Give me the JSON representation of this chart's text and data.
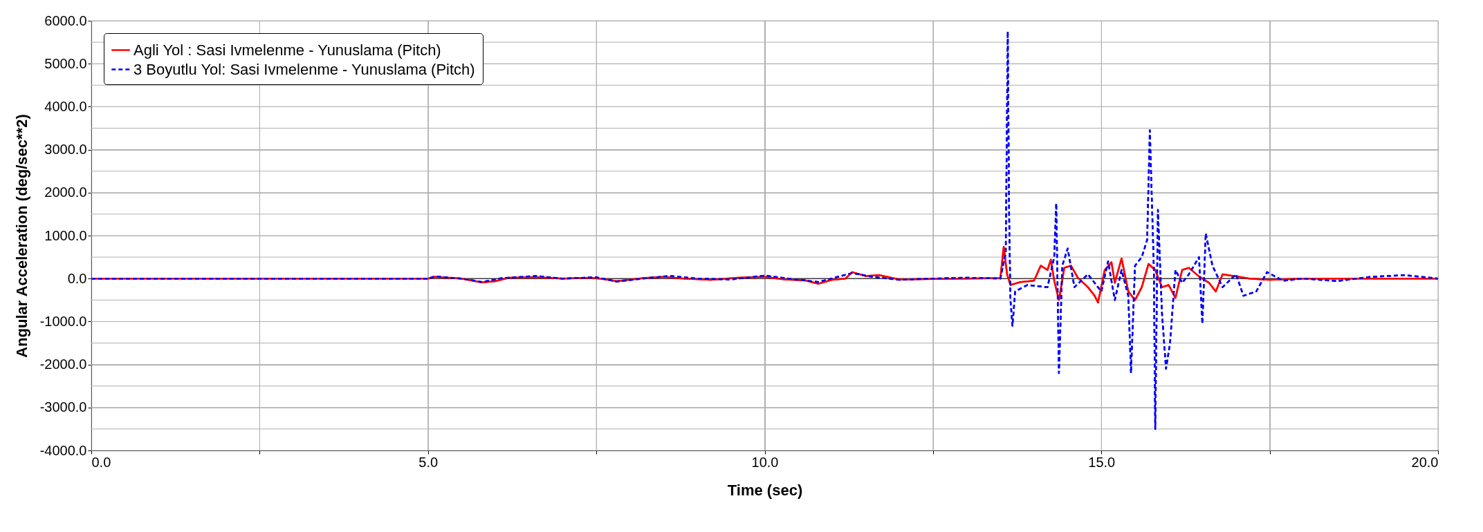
{
  "chart_data": {
    "type": "line",
    "xlabel": "Time (sec)",
    "ylabel": "Angular Acceleration (deg/sec**2)",
    "xlim": [
      0,
      20
    ],
    "ylim": [
      -4000,
      6000
    ],
    "xticks": [
      {
        "value": 0,
        "label": "0.0"
      },
      {
        "value": 2.5,
        "label": null
      },
      {
        "value": 5,
        "label": "5.0"
      },
      {
        "value": 7.5,
        "label": null
      },
      {
        "value": 10,
        "label": "10.0"
      },
      {
        "value": 12.5,
        "label": null
      },
      {
        "value": 15,
        "label": "15.0"
      },
      {
        "value": 17.5,
        "label": null
      },
      {
        "value": 20,
        "label": "20.0"
      }
    ],
    "yticks": [
      {
        "value": -4000,
        "label": "-4000.0"
      },
      {
        "value": -3500,
        "label": null
      },
      {
        "value": -3000,
        "label": "-3000.0"
      },
      {
        "value": -2500,
        "label": null
      },
      {
        "value": -2000,
        "label": "-2000.0"
      },
      {
        "value": -1500,
        "label": null
      },
      {
        "value": -1000,
        "label": "-1000.0"
      },
      {
        "value": -500,
        "label": null
      },
      {
        "value": 0,
        "label": "0.0"
      },
      {
        "value": 500,
        "label": null
      },
      {
        "value": 1000,
        "label": "1000.0"
      },
      {
        "value": 1500,
        "label": null
      },
      {
        "value": 2000,
        "label": "2000.0"
      },
      {
        "value": 2500,
        "label": null
      },
      {
        "value": 3000,
        "label": "3000.0"
      },
      {
        "value": 3500,
        "label": null
      },
      {
        "value": 4000,
        "label": "4000.0"
      },
      {
        "value": 4500,
        "label": null
      },
      {
        "value": 5000,
        "label": "5000.0"
      },
      {
        "value": 5500,
        "label": null
      },
      {
        "value": 6000,
        "label": "6000.0"
      }
    ],
    "grid": true,
    "legend": "top left",
    "series": [
      {
        "name": "Agli Yol : Sasi Ivmelenme - Yunuslama (Pitch)",
        "color": "#ff0000",
        "line_style": "solid",
        "x": [
          0,
          5.0,
          5.1,
          5.5,
          5.8,
          6.0,
          6.2,
          6.6,
          7.0,
          7.4,
          7.6,
          7.8,
          8.2,
          8.5,
          8.8,
          9.2,
          9.6,
          10.0,
          10.3,
          10.6,
          10.8,
          11.0,
          11.2,
          11.3,
          11.5,
          11.7,
          12.0,
          12.5,
          13.0,
          13.5,
          13.55,
          13.6,
          13.65,
          13.8,
          14.0,
          14.1,
          14.2,
          14.25,
          14.3,
          14.37,
          14.45,
          14.55,
          14.65,
          14.8,
          14.9,
          14.95,
          15.05,
          15.15,
          15.2,
          15.3,
          15.4,
          15.5,
          15.6,
          15.7,
          15.8,
          15.9,
          16.0,
          16.1,
          16.2,
          16.3,
          16.45,
          16.6,
          16.7,
          16.8,
          17.0,
          17.2,
          17.5,
          18.0,
          20.0
        ],
        "values": [
          0,
          0,
          40,
          0,
          -90,
          -60,
          20,
          30,
          0,
          20,
          -10,
          -60,
          10,
          40,
          0,
          -30,
          20,
          40,
          -20,
          -40,
          -120,
          -30,
          0,
          150,
          60,
          80,
          -20,
          -10,
          0,
          10,
          740,
          100,
          -150,
          -80,
          -50,
          300,
          200,
          440,
          -50,
          -500,
          250,
          300,
          20,
          -200,
          -400,
          -560,
          200,
          380,
          -100,
          470,
          -300,
          -500,
          -200,
          340,
          200,
          -200,
          -150,
          -450,
          200,
          250,
          50,
          -100,
          -300,
          100,
          50,
          0,
          -30,
          0,
          0
        ]
      },
      {
        "name": "3 Boyutlu Yol: Sasi Ivmelenme - Yunuslama (Pitch)",
        "color": "#0000ff",
        "line_style": "dashed",
        "x": [
          0,
          5.0,
          5.1,
          5.5,
          5.8,
          6.1,
          6.6,
          7.0,
          7.5,
          7.8,
          8.3,
          8.6,
          9.0,
          9.5,
          10.0,
          10.4,
          10.8,
          11.3,
          11.6,
          12.0,
          12.5,
          13.0,
          13.5,
          13.58,
          13.61,
          13.63,
          13.65,
          13.68,
          13.72,
          13.9,
          14.2,
          14.3,
          14.33,
          14.37,
          14.42,
          14.5,
          14.6,
          14.8,
          15.0,
          15.1,
          15.2,
          15.3,
          15.4,
          15.44,
          15.5,
          15.6,
          15.68,
          15.72,
          15.78,
          15.8,
          15.84,
          15.9,
          15.96,
          16.02,
          16.1,
          16.2,
          16.3,
          16.45,
          16.5,
          16.55,
          16.65,
          16.8,
          17.0,
          17.11,
          17.3,
          17.46,
          17.7,
          18.0,
          18.5,
          19.0,
          19.5,
          20.0
        ],
        "values": [
          0,
          0,
          50,
          0,
          -80,
          10,
          60,
          0,
          30,
          -70,
          20,
          60,
          0,
          -20,
          70,
          -10,
          -80,
          130,
          40,
          -30,
          0,
          20,
          0,
          600,
          5750,
          1500,
          -500,
          -1100,
          -300,
          -150,
          -200,
          500,
          1750,
          -2200,
          300,
          700,
          -200,
          100,
          -300,
          400,
          -500,
          200,
          -400,
          -2200,
          300,
          500,
          900,
          3450,
          200,
          -3500,
          1600,
          -800,
          -2100,
          -1500,
          200,
          -100,
          100,
          500,
          -1050,
          1050,
          300,
          -200,
          100,
          -400,
          -300,
          150,
          -50,
          0,
          -60,
          40,
          80,
          0
        ]
      }
    ]
  }
}
